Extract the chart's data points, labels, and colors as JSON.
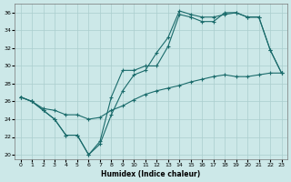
{
  "xlabel": "Humidex (Indice chaleur)",
  "bg_color": "#cce8e8",
  "line_color": "#1a6b6b",
  "grid_color": "#aacece",
  "xlim": [
    -0.5,
    23.5
  ],
  "ylim": [
    19.5,
    37
  ],
  "xticks": [
    0,
    1,
    2,
    3,
    4,
    5,
    6,
    7,
    8,
    9,
    10,
    11,
    12,
    13,
    14,
    15,
    16,
    17,
    18,
    19,
    20,
    21,
    22,
    23
  ],
  "yticks": [
    20,
    22,
    24,
    26,
    28,
    30,
    32,
    34,
    36
  ],
  "series1_x": [
    0,
    1,
    2,
    3,
    4,
    5,
    6,
    7,
    8,
    9,
    10,
    11,
    12,
    13,
    14,
    15,
    16,
    17,
    18,
    19,
    20,
    21,
    22,
    23
  ],
  "series1_y": [
    26.5,
    26.0,
    25.0,
    24.0,
    22.2,
    22.2,
    20.0,
    21.2,
    24.5,
    27.2,
    29.0,
    29.5,
    31.5,
    33.2,
    36.2,
    35.8,
    35.5,
    35.5,
    35.8,
    36.0,
    35.5,
    35.5,
    31.8,
    29.2
  ],
  "series2_x": [
    0,
    1,
    2,
    3,
    4,
    5,
    6,
    7,
    8,
    9,
    10,
    11,
    12,
    13,
    14,
    15,
    16,
    17,
    18,
    19,
    20,
    21,
    22,
    23
  ],
  "series2_y": [
    26.5,
    26.0,
    25.0,
    24.0,
    22.2,
    22.2,
    20.0,
    21.5,
    26.5,
    29.5,
    29.5,
    30.0,
    30.0,
    32.2,
    35.8,
    35.5,
    35.0,
    35.0,
    36.0,
    36.0,
    35.5,
    35.5,
    31.8,
    29.2
  ],
  "series3_x": [
    0,
    1,
    2,
    3,
    4,
    5,
    6,
    7,
    8,
    9,
    10,
    11,
    12,
    13,
    14,
    15,
    16,
    17,
    18,
    19,
    20,
    21,
    22,
    23
  ],
  "series3_y": [
    26.5,
    26.0,
    25.2,
    25.0,
    24.5,
    24.5,
    24.0,
    24.2,
    25.0,
    25.5,
    26.2,
    26.8,
    27.2,
    27.5,
    27.8,
    28.2,
    28.5,
    28.8,
    29.0,
    28.8,
    28.8,
    29.0,
    29.2,
    29.2
  ]
}
